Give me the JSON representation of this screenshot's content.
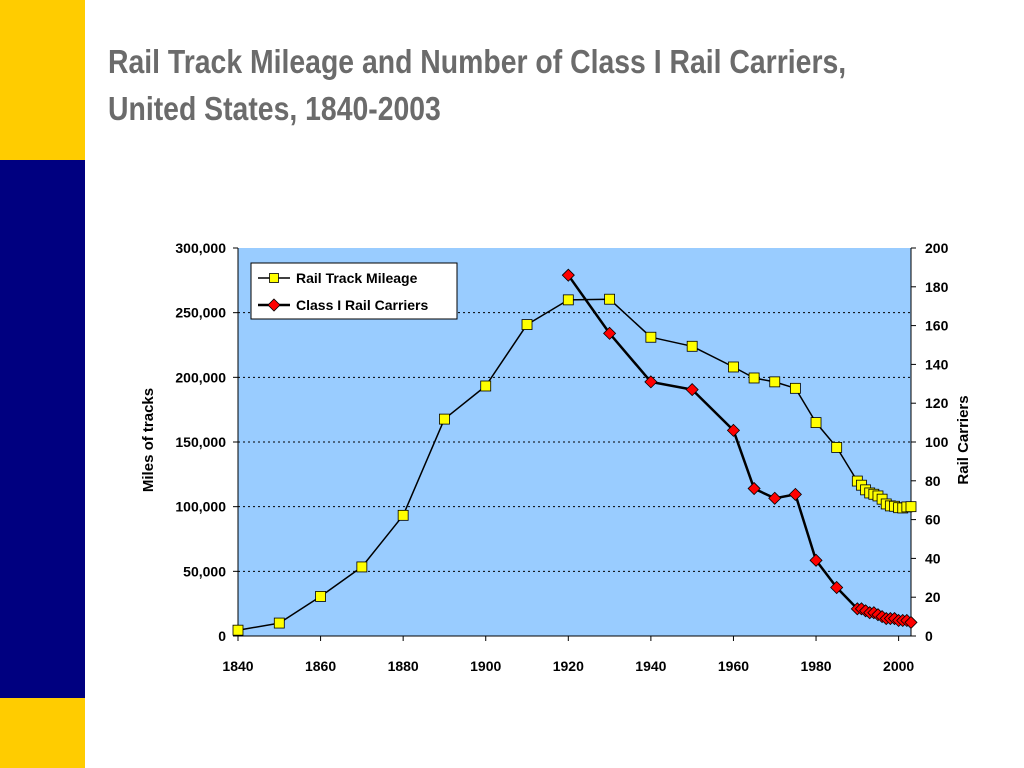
{
  "slide": {
    "title_line1": "Rail Track Mileage and Number of Class I Rail Carriers,",
    "title_line2": "United States, 1840-2003",
    "colors": {
      "accent_yellow": "#ffcc00",
      "accent_navy": "#000080",
      "title": "#6b6b6b"
    }
  },
  "chart_data": {
    "type": "line",
    "title": "",
    "xlabel": "",
    "ylabel": "Miles of tracks",
    "y2label": "Rail Carriers",
    "xlim": [
      1840,
      2003
    ],
    "ylim": [
      0,
      300000
    ],
    "y2lim": [
      0,
      200
    ],
    "x_ticks": [
      1840,
      1860,
      1880,
      1900,
      1920,
      1940,
      1960,
      1980,
      2000
    ],
    "y_ticks": [
      "0",
      "50,000",
      "100,000",
      "150,000",
      "200,000",
      "250,000",
      "300,000"
    ],
    "y2_ticks": [
      "0",
      "20",
      "40",
      "60",
      "80",
      "100",
      "120",
      "140",
      "160",
      "180",
      "200"
    ],
    "grid": "horizontal dotted",
    "plot_background": "#99ccff",
    "legend_position": "top-left",
    "series": [
      {
        "name": "Rail Track Mileage",
        "axis": "left",
        "marker": "square",
        "color": "#ffff00",
        "x": [
          1840,
          1850,
          1860,
          1870,
          1880,
          1890,
          1900,
          1910,
          1920,
          1930,
          1940,
          1950,
          1960,
          1965,
          1970,
          1975,
          1980,
          1985,
          1990,
          1991,
          1992,
          1993,
          1994,
          1995,
          1996,
          1997,
          1998,
          1999,
          2000,
          2001,
          2002,
          2003
        ],
        "values": [
          4500,
          10000,
          30600,
          53400,
          93300,
          167700,
          193300,
          240800,
          259900,
          260400,
          231000,
          224000,
          208000,
          199500,
          196500,
          191500,
          165000,
          145800,
          119800,
          116600,
          113000,
          110600,
          109600,
          108300,
          105800,
          102100,
          100600,
          100300,
          99200,
          99000,
          99800,
          100000
        ]
      },
      {
        "name": "Class I Rail Carriers",
        "axis": "right",
        "marker": "diamond",
        "color": "#ff0000",
        "x": [
          1920,
          1930,
          1940,
          1950,
          1960,
          1965,
          1970,
          1975,
          1980,
          1985,
          1990,
          1991,
          1992,
          1993,
          1994,
          1995,
          1996,
          1997,
          1998,
          1999,
          2000,
          2001,
          2002,
          2003
        ],
        "values": [
          186,
          156,
          131,
          127,
          106,
          76,
          71,
          73,
          39,
          25,
          14,
          14,
          13,
          12,
          12,
          11,
          10,
          9,
          9,
          9,
          8,
          8,
          8,
          7
        ]
      }
    ]
  }
}
